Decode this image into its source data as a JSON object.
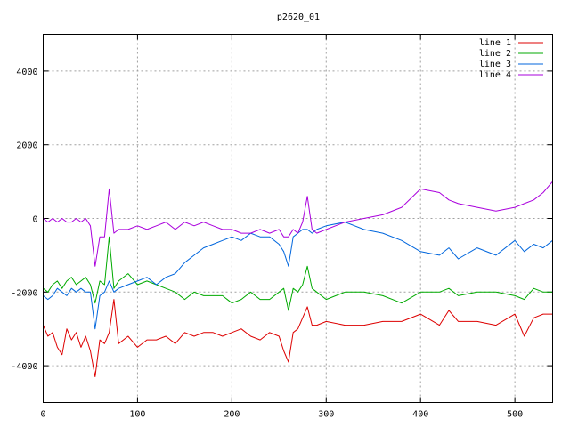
{
  "chart_data": {
    "type": "line",
    "title": "p2620_01",
    "xlabel": "",
    "ylabel": "",
    "xlim": [
      0,
      540
    ],
    "ylim": [
      -5000,
      5000
    ],
    "xticks": [
      0,
      100,
      200,
      300,
      400,
      500
    ],
    "yticks": [
      -4000,
      -2000,
      0,
      2000,
      4000
    ],
    "grid": true,
    "legend_position": "top-right",
    "series": [
      {
        "name": "line 1",
        "color": "#dd0000",
        "x": [
          0,
          5,
          10,
          15,
          20,
          25,
          30,
          35,
          40,
          45,
          50,
          55,
          60,
          65,
          70,
          75,
          80,
          90,
          100,
          110,
          120,
          130,
          140,
          150,
          160,
          170,
          180,
          190,
          200,
          210,
          220,
          230,
          240,
          250,
          255,
          260,
          265,
          270,
          275,
          280,
          285,
          290,
          300,
          320,
          340,
          360,
          380,
          400,
          420,
          430,
          440,
          460,
          480,
          500,
          510,
          520,
          530,
          540
        ],
        "y": [
          -2900,
          -3200,
          -3100,
          -3500,
          -3700,
          -3000,
          -3300,
          -3100,
          -3500,
          -3200,
          -3600,
          -4300,
          -3300,
          -3400,
          -3100,
          -2200,
          -3400,
          -3200,
          -3500,
          -3300,
          -3300,
          -3200,
          -3400,
          -3100,
          -3200,
          -3100,
          -3100,
          -3200,
          -3100,
          -3000,
          -3200,
          -3300,
          -3100,
          -3200,
          -3600,
          -3900,
          -3100,
          -3000,
          -2700,
          -2400,
          -2900,
          -2900,
          -2800,
          -2900,
          -2900,
          -2800,
          -2800,
          -2600,
          -2900,
          -2500,
          -2800,
          -2800,
          -2900,
          -2600,
          -3200,
          -2700,
          -2600,
          -2600
        ]
      },
      {
        "name": "line 2",
        "color": "#00aa00",
        "x": [
          0,
          5,
          10,
          15,
          20,
          25,
          30,
          35,
          40,
          45,
          50,
          55,
          60,
          65,
          70,
          75,
          80,
          90,
          100,
          110,
          120,
          130,
          140,
          150,
          160,
          170,
          180,
          190,
          200,
          210,
          220,
          230,
          240,
          250,
          255,
          260,
          265,
          270,
          275,
          280,
          285,
          290,
          300,
          320,
          340,
          360,
          380,
          400,
          420,
          430,
          440,
          460,
          480,
          500,
          510,
          520,
          530,
          540
        ],
        "y": [
          -1900,
          -2000,
          -1800,
          -1700,
          -1900,
          -1700,
          -1600,
          -1800,
          -1700,
          -1600,
          -1800,
          -2300,
          -1700,
          -1800,
          -500,
          -1900,
          -1700,
          -1500,
          -1800,
          -1700,
          -1800,
          -1900,
          -2000,
          -2200,
          -2000,
          -2100,
          -2100,
          -2100,
          -2300,
          -2200,
          -2000,
          -2200,
          -2200,
          -2000,
          -1900,
          -2500,
          -1900,
          -2000,
          -1800,
          -1300,
          -1900,
          -2000,
          -2200,
          -2000,
          -2000,
          -2100,
          -2300,
          -2000,
          -2000,
          -1900,
          -2100,
          -2000,
          -2000,
          -2100,
          -2200,
          -1900,
          -2000,
          -2000
        ]
      },
      {
        "name": "line 3",
        "color": "#0066dd",
        "x": [
          0,
          5,
          10,
          15,
          20,
          25,
          30,
          35,
          40,
          45,
          50,
          55,
          60,
          65,
          70,
          75,
          80,
          90,
          100,
          110,
          120,
          130,
          140,
          150,
          160,
          170,
          180,
          190,
          200,
          210,
          220,
          230,
          240,
          250,
          255,
          260,
          265,
          270,
          275,
          280,
          285,
          290,
          300,
          320,
          340,
          360,
          380,
          400,
          420,
          430,
          440,
          460,
          480,
          500,
          510,
          520,
          530,
          540
        ],
        "y": [
          -2100,
          -2200,
          -2100,
          -1900,
          -2000,
          -2100,
          -1900,
          -2000,
          -1900,
          -2000,
          -2000,
          -3000,
          -2100,
          -2000,
          -1700,
          -2000,
          -1900,
          -1800,
          -1700,
          -1600,
          -1800,
          -1600,
          -1500,
          -1200,
          -1000,
          -800,
          -700,
          -600,
          -500,
          -600,
          -400,
          -500,
          -500,
          -700,
          -900,
          -1300,
          -500,
          -400,
          -300,
          -300,
          -400,
          -300,
          -200,
          -100,
          -300,
          -400,
          -600,
          -900,
          -1000,
          -800,
          -1100,
          -800,
          -1000,
          -600,
          -900,
          -700,
          -800,
          -600
        ]
      },
      {
        "name": "line 4",
        "color": "#aa00dd",
        "x": [
          0,
          5,
          10,
          15,
          20,
          25,
          30,
          35,
          40,
          45,
          50,
          55,
          60,
          65,
          70,
          75,
          80,
          90,
          100,
          110,
          120,
          130,
          140,
          150,
          160,
          170,
          180,
          190,
          200,
          210,
          220,
          230,
          240,
          250,
          255,
          260,
          265,
          270,
          275,
          280,
          285,
          290,
          300,
          320,
          340,
          360,
          380,
          400,
          420,
          430,
          440,
          460,
          480,
          500,
          510,
          520,
          530,
          540
        ],
        "y": [
          0,
          -100,
          0,
          -100,
          0,
          -100,
          -100,
          0,
          -100,
          0,
          -200,
          -1300,
          -500,
          -500,
          800,
          -400,
          -300,
          -300,
          -200,
          -300,
          -200,
          -100,
          -300,
          -100,
          -200,
          -100,
          -200,
          -300,
          -300,
          -400,
          -400,
          -300,
          -400,
          -300,
          -500,
          -500,
          -300,
          -400,
          -100,
          600,
          -300,
          -400,
          -300,
          -100,
          0,
          100,
          300,
          800,
          700,
          500,
          400,
          300,
          200,
          300,
          400,
          500,
          700,
          1000
        ]
      }
    ]
  }
}
